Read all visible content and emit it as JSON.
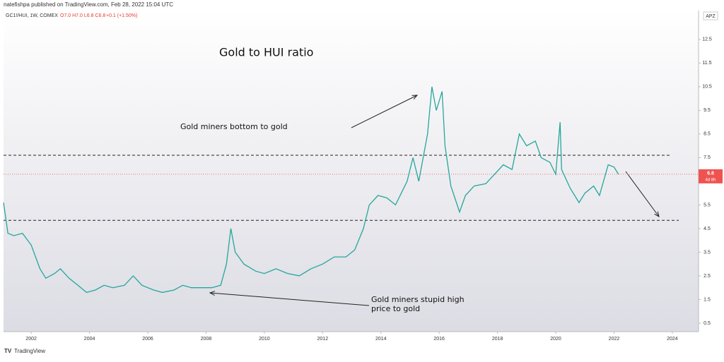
{
  "header": {
    "publisher": "natefishpa published on TradingView.com, Feb 28, 2022 15:04 UTC",
    "symbol": "GC1!/HUI, 1W, COMEX",
    "ohlc": "O7.0 H7.0 L6.8 C6.8",
    "change": "+0.1 (+1.50%)"
  },
  "footer": {
    "brand": "TradingView"
  },
  "chart_data": {
    "type": "line",
    "title": "Gold to HUI ratio",
    "annotations": [
      "Gold miners bottom to gold",
      "Gold miners stupid high",
      "price to gold"
    ],
    "scale_label": "APZ",
    "color": "#26a69a",
    "x": [
      2001.05,
      2001.2,
      2001.4,
      2001.7,
      2002.0,
      2002.3,
      2002.5,
      2002.8,
      2003.0,
      2003.3,
      2003.6,
      2003.9,
      2004.2,
      2004.5,
      2004.8,
      2005.2,
      2005.5,
      2005.8,
      2006.2,
      2006.5,
      2006.9,
      2007.2,
      2007.5,
      2007.9,
      2008.2,
      2008.5,
      2008.7,
      2008.85,
      2009.0,
      2009.3,
      2009.7,
      2010.0,
      2010.4,
      2010.8,
      2011.2,
      2011.6,
      2012.0,
      2012.4,
      2012.8,
      2013.1,
      2013.4,
      2013.6,
      2013.9,
      2014.2,
      2014.5,
      2014.9,
      2015.1,
      2015.3,
      2015.6,
      2015.75,
      2015.9,
      2016.1,
      2016.2,
      2016.4,
      2016.7,
      2016.9,
      2017.2,
      2017.6,
      2017.9,
      2018.2,
      2018.5,
      2018.75,
      2019.0,
      2019.3,
      2019.5,
      2019.8,
      2020.0,
      2020.15,
      2020.2,
      2020.5,
      2020.8,
      2021.0,
      2021.3,
      2021.5,
      2021.8,
      2022.0,
      2022.15
    ],
    "values": [
      5.6,
      4.3,
      4.2,
      4.3,
      3.8,
      2.8,
      2.4,
      2.6,
      2.8,
      2.4,
      2.1,
      1.8,
      1.9,
      2.1,
      2.0,
      2.1,
      2.5,
      2.1,
      1.9,
      1.8,
      1.9,
      2.1,
      2.0,
      2.0,
      2.0,
      2.1,
      3.0,
      4.5,
      3.5,
      3.0,
      2.7,
      2.6,
      2.8,
      2.6,
      2.5,
      2.8,
      3.0,
      3.3,
      3.3,
      3.6,
      4.5,
      5.5,
      5.9,
      5.8,
      5.5,
      6.5,
      7.5,
      6.5,
      8.5,
      10.5,
      9.5,
      10.3,
      8.0,
      6.3,
      5.2,
      5.9,
      6.3,
      6.4,
      6.8,
      7.2,
      7.0,
      8.5,
      8.0,
      8.2,
      7.5,
      7.3,
      6.8,
      9.0,
      7.0,
      6.2,
      5.6,
      6.0,
      6.3,
      5.9,
      7.2,
      7.1,
      6.8
    ],
    "levels": [
      7.6,
      4.85
    ],
    "last_price": 6.8,
    "countdown": "4d 8h",
    "xlim": [
      2001.05,
      2024.9
    ],
    "xticks": [
      2002,
      2004,
      2006,
      2008,
      2010,
      2012,
      2014,
      2016,
      2018,
      2020,
      2022,
      2024
    ],
    "ylim": [
      0.14,
      13.72
    ],
    "yticks": [
      0.5,
      1.5,
      2.5,
      3.5,
      4.5,
      5.5,
      6.5,
      7.5,
      8.5,
      9.5,
      10.5,
      11.5,
      12.5
    ]
  }
}
